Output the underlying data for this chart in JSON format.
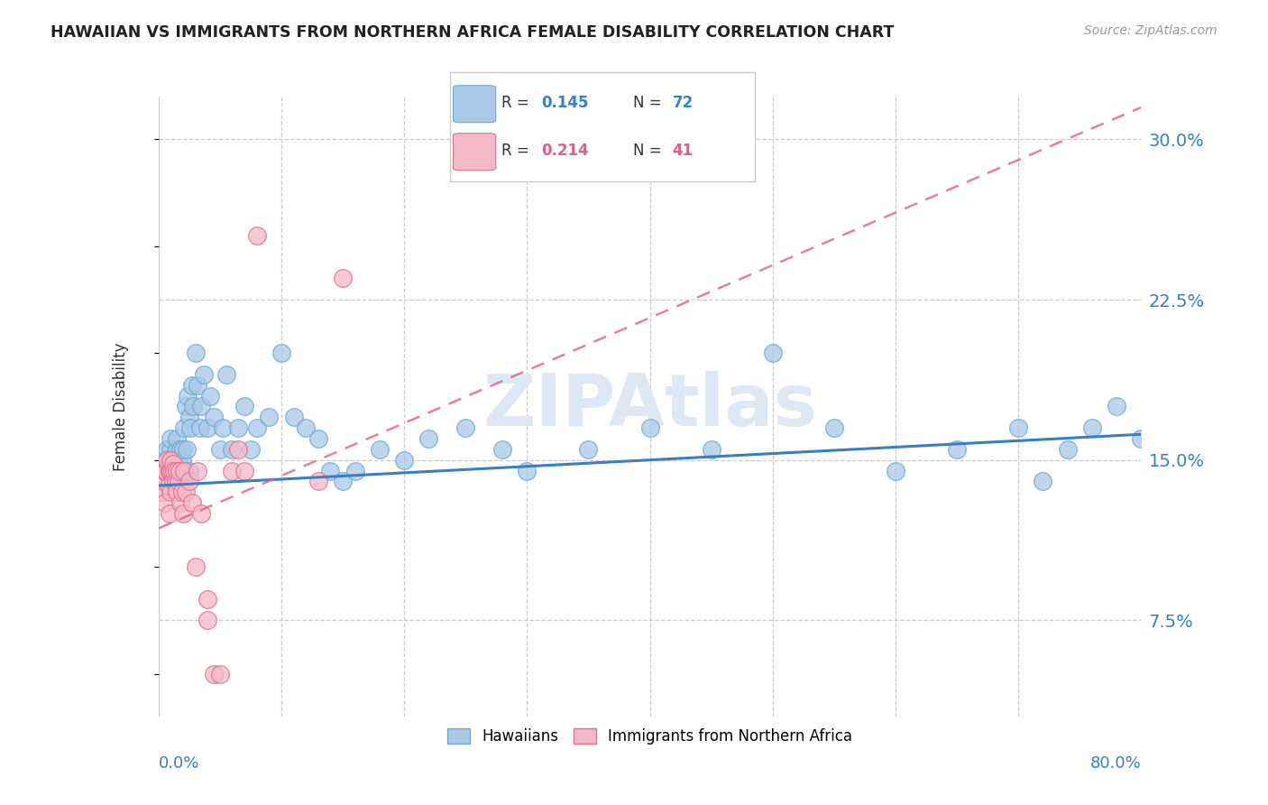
{
  "title": "HAWAIIAN VS IMMIGRANTS FROM NORTHERN AFRICA FEMALE DISABILITY CORRELATION CHART",
  "source": "Source: ZipAtlas.com",
  "ylabel": "Female Disability",
  "yticks": [
    "7.5%",
    "15.0%",
    "22.5%",
    "30.0%"
  ],
  "ytick_vals": [
    0.075,
    0.15,
    0.225,
    0.3
  ],
  "xmin": 0.0,
  "xmax": 0.8,
  "ymin": 0.03,
  "ymax": 0.32,
  "color_hawaiian_fill": "#aac8e8",
  "color_hawaiian_edge": "#6aaad4",
  "color_na_fill": "#f5b8c8",
  "color_na_edge": "#e07090",
  "color_line_hawaiian": "#3a7fc1",
  "color_line_na": "#e06080",
  "watermark_color": "#dde8f4",
  "hawaiian_x": [
    0.005,
    0.006,
    0.007,
    0.008,
    0.009,
    0.01,
    0.01,
    0.01,
    0.01,
    0.012,
    0.013,
    0.014,
    0.015,
    0.015,
    0.016,
    0.017,
    0.018,
    0.019,
    0.02,
    0.02,
    0.021,
    0.022,
    0.023,
    0.024,
    0.025,
    0.025,
    0.026,
    0.027,
    0.028,
    0.03,
    0.032,
    0.034,
    0.035,
    0.037,
    0.04,
    0.042,
    0.045,
    0.05,
    0.052,
    0.055,
    0.06,
    0.065,
    0.07,
    0.075,
    0.08,
    0.09,
    0.1,
    0.11,
    0.12,
    0.13,
    0.14,
    0.15,
    0.16,
    0.18,
    0.2,
    0.22,
    0.25,
    0.28,
    0.3,
    0.35,
    0.4,
    0.45,
    0.5,
    0.55,
    0.6,
    0.65,
    0.7,
    0.72,
    0.74,
    0.76,
    0.78,
    0.8
  ],
  "hawaiian_y": [
    0.145,
    0.15,
    0.155,
    0.148,
    0.142,
    0.15,
    0.155,
    0.145,
    0.16,
    0.148,
    0.152,
    0.145,
    0.155,
    0.16,
    0.148,
    0.145,
    0.155,
    0.15,
    0.145,
    0.155,
    0.165,
    0.175,
    0.155,
    0.18,
    0.145,
    0.17,
    0.165,
    0.185,
    0.175,
    0.2,
    0.185,
    0.165,
    0.175,
    0.19,
    0.165,
    0.18,
    0.17,
    0.155,
    0.165,
    0.19,
    0.155,
    0.165,
    0.175,
    0.155,
    0.165,
    0.17,
    0.2,
    0.17,
    0.165,
    0.16,
    0.145,
    0.14,
    0.145,
    0.155,
    0.15,
    0.16,
    0.165,
    0.155,
    0.145,
    0.155,
    0.165,
    0.155,
    0.2,
    0.165,
    0.145,
    0.155,
    0.165,
    0.14,
    0.155,
    0.165,
    0.175,
    0.16
  ],
  "na_x": [
    0.003,
    0.004,
    0.005,
    0.005,
    0.006,
    0.007,
    0.008,
    0.009,
    0.009,
    0.01,
    0.01,
    0.01,
    0.011,
    0.012,
    0.012,
    0.013,
    0.014,
    0.015,
    0.015,
    0.016,
    0.017,
    0.018,
    0.019,
    0.02,
    0.021,
    0.022,
    0.025,
    0.027,
    0.03,
    0.032,
    0.035,
    0.04,
    0.04,
    0.045,
    0.05,
    0.06,
    0.065,
    0.07,
    0.08,
    0.13,
    0.15
  ],
  "na_y": [
    0.135,
    0.14,
    0.145,
    0.13,
    0.145,
    0.15,
    0.138,
    0.125,
    0.145,
    0.15,
    0.145,
    0.135,
    0.145,
    0.148,
    0.14,
    0.145,
    0.14,
    0.145,
    0.135,
    0.14,
    0.145,
    0.13,
    0.135,
    0.125,
    0.145,
    0.135,
    0.14,
    0.13,
    0.1,
    0.145,
    0.125,
    0.085,
    0.075,
    0.05,
    0.05,
    0.145,
    0.155,
    0.145,
    0.255,
    0.14,
    0.235
  ],
  "line_h_x0": 0.0,
  "line_h_x1": 0.8,
  "line_h_y0": 0.138,
  "line_h_y1": 0.162,
  "line_na_x0": 0.0,
  "line_na_x1": 0.8,
  "line_na_y0": 0.118,
  "line_na_y1": 0.315
}
